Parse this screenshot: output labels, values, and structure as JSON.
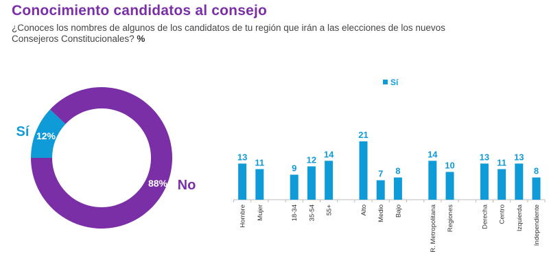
{
  "title": "Conocimiento candidatos al consejo",
  "subtitle": "¿Conoces los nombres de algunos de los candidatos de tu región que irán a las elecciones de los nuevos Consejeros Constitucionales?",
  "unit": "%",
  "colors": {
    "si": "#0f9bd7",
    "no": "#7b2fa6"
  },
  "chart_data": [
    {
      "type": "pie",
      "variant": "donut",
      "slices": [
        {
          "label": "Sí",
          "value": 12,
          "value_label": "12%",
          "color": "#0f9bd7"
        },
        {
          "label": "No",
          "value": 88,
          "value_label": "88%",
          "color": "#7b2fa6"
        }
      ]
    },
    {
      "type": "bar",
      "legend": {
        "entries": [
          "Sí"
        ],
        "position": "top"
      },
      "groups": [
        [
          "Hombre",
          "Mujer"
        ],
        [
          "18-34",
          "35-54",
          "55+"
        ],
        [
          "Alto",
          "Medio",
          "Bajo"
        ],
        [
          "R. Metropolitana",
          "Regiones"
        ],
        [
          "Derecha",
          "Centro",
          "Izquierda",
          "Independiente"
        ]
      ],
      "categories": [
        "Hombre",
        "Mujer",
        "18-34",
        "35-54",
        "55+",
        "Alto",
        "Medio",
        "Bajo",
        "R. Metropolitana",
        "Regiones",
        "Derecha",
        "Centro",
        "Izquierda",
        "Independiente"
      ],
      "series": [
        {
          "name": "Sí",
          "values": [
            13,
            11,
            9,
            12,
            14,
            21,
            7,
            8,
            14,
            10,
            13,
            11,
            13,
            8
          ],
          "color": "#0f9bd7"
        }
      ],
      "grid": false
    }
  ]
}
